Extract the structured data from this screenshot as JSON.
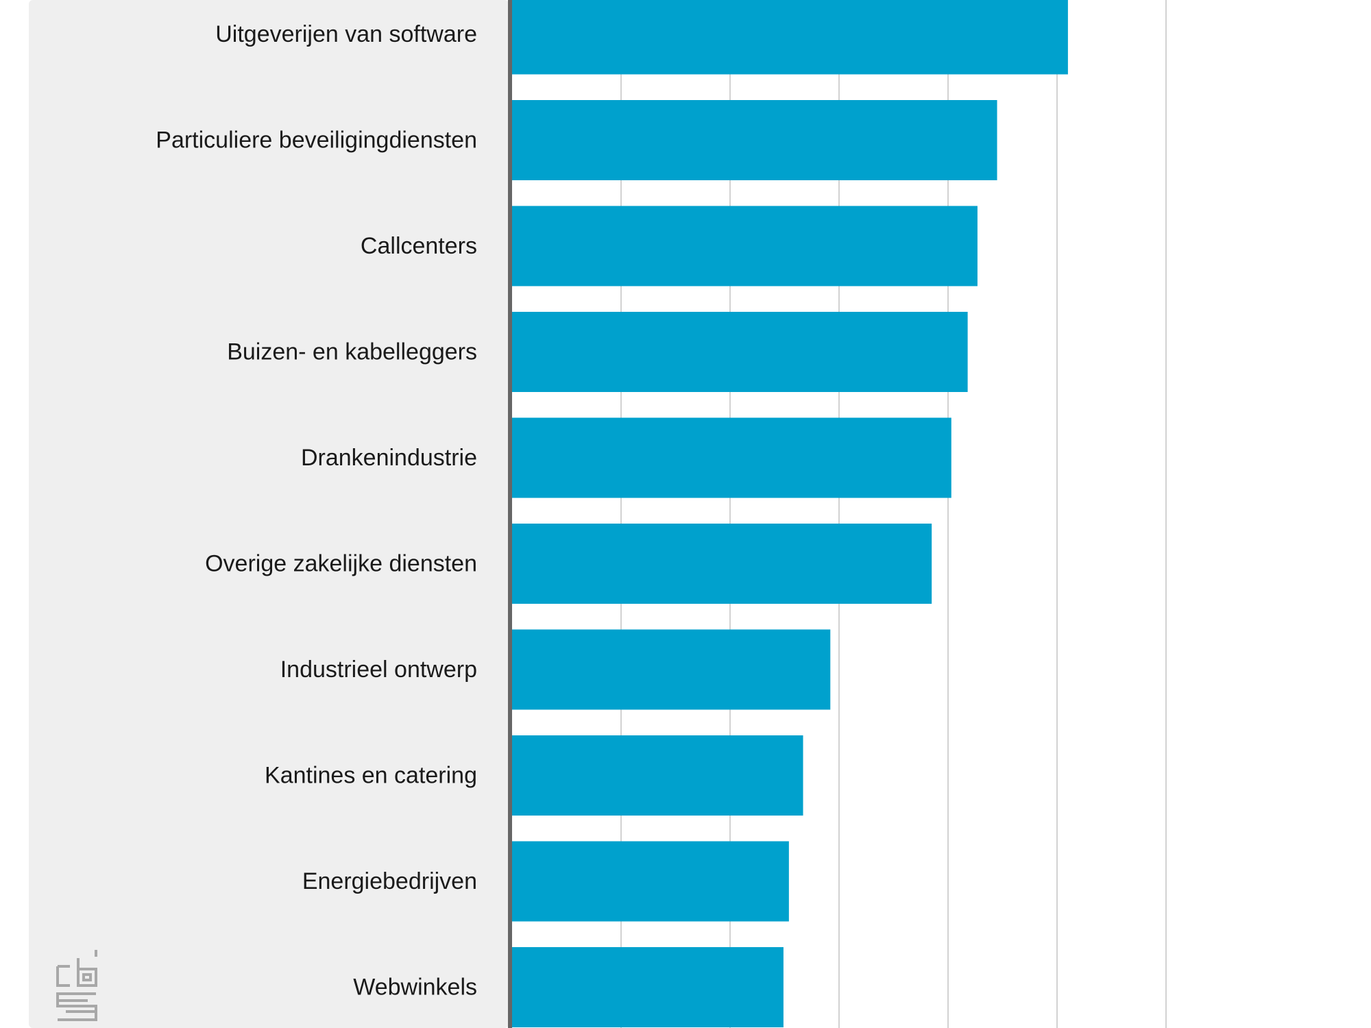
{
  "colors": {
    "bar": "#00a1cd",
    "label_panel": "#efefef",
    "axis_line": "#666666",
    "gridline": "#d2d2d2",
    "logo": "#a8a8a8"
  },
  "logo": {
    "icon": "cbs-logo-icon",
    "text": "cbs"
  },
  "chart_data": {
    "type": "bar",
    "orientation": "horizontal",
    "categories": [
      "Uitgeverijen van software",
      "Particuliere beveiligingdiensten",
      "Callcenters",
      "Buizen- en kabelleggers",
      "Drankenindustrie",
      "Overige zakelijke diensten",
      "Industrieel ontwerp",
      "Kantines en catering",
      "Energiebedrijven",
      "Webwinkels"
    ],
    "values": [
      5.1,
      4.45,
      4.27,
      4.18,
      4.03,
      3.85,
      2.92,
      2.67,
      2.54,
      2.49
    ],
    "xlim": [
      0,
      7
    ],
    "x_gridlines": [
      1,
      2,
      3,
      4,
      5,
      6
    ],
    "grid": true,
    "legend": "none",
    "title": "",
    "xlabel": "",
    "ylabel": ""
  }
}
